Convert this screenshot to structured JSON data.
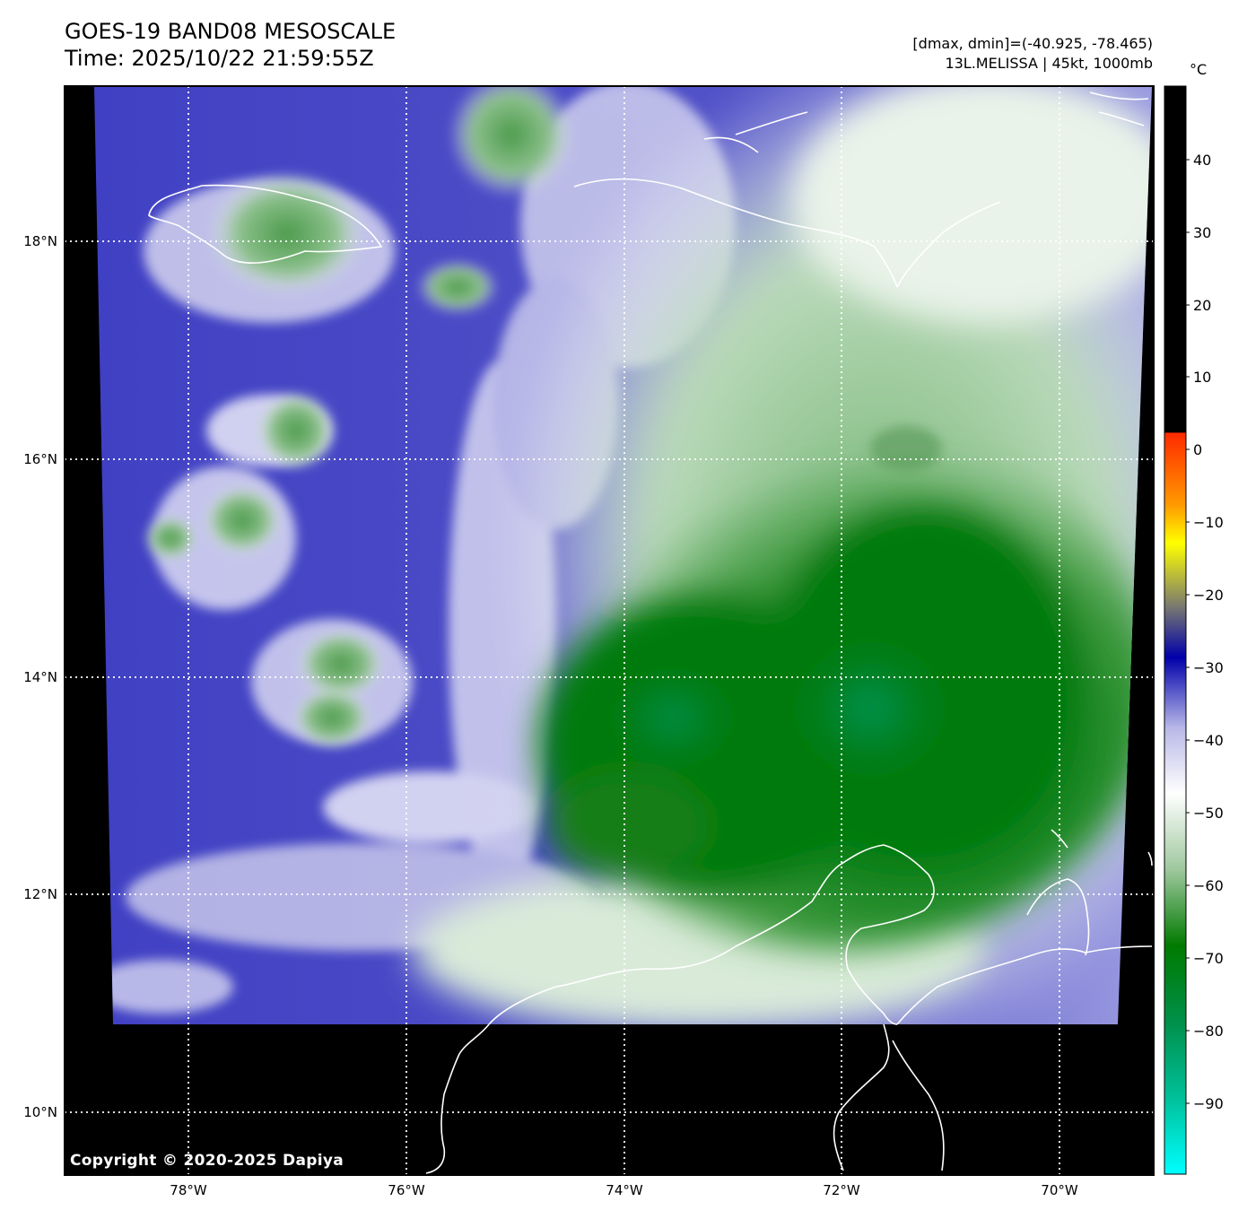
{
  "header": {
    "title": "GOES-19 BAND08 MESOSCALE",
    "time": "Time: 2025/10/22 21:59:55Z",
    "range": "[dmax, dmin]=(-40.925, -78.465)",
    "storm": "13L.MELISSA | 45kt, 1000mb"
  },
  "map": {
    "lat_labels": [
      "18°N",
      "16°N",
      "14°N",
      "12°N",
      "10°N"
    ],
    "lon_labels": [
      "78°W",
      "76°W",
      "74°W",
      "72°W",
      "70°W"
    ],
    "copyright": "Copyright © 2020-2025 Dapiya"
  },
  "colorbar": {
    "unit": "°C",
    "ticks": [
      "40",
      "30",
      "20",
      "10",
      "0",
      "−10",
      "−20",
      "−30",
      "−40",
      "−50",
      "−60",
      "−70",
      "−80",
      "−90"
    ],
    "colors": {
      "warm": "#000000",
      "red": "#ff2a00",
      "yellow": "#ffff00",
      "gray": "#7a7a70",
      "blue": "#0000aa",
      "lavender": "#b8b8e8",
      "white": "#ffffff",
      "green_light": "#9ec89e",
      "green": "#007a00",
      "teal": "#00aa80",
      "cyan": "#00ffff"
    }
  },
  "legend_colors": {
    "cold_cloud": "#007a00",
    "cirrus": "#3535c0",
    "coastline": "#ffffff",
    "no_data": "#000000"
  }
}
